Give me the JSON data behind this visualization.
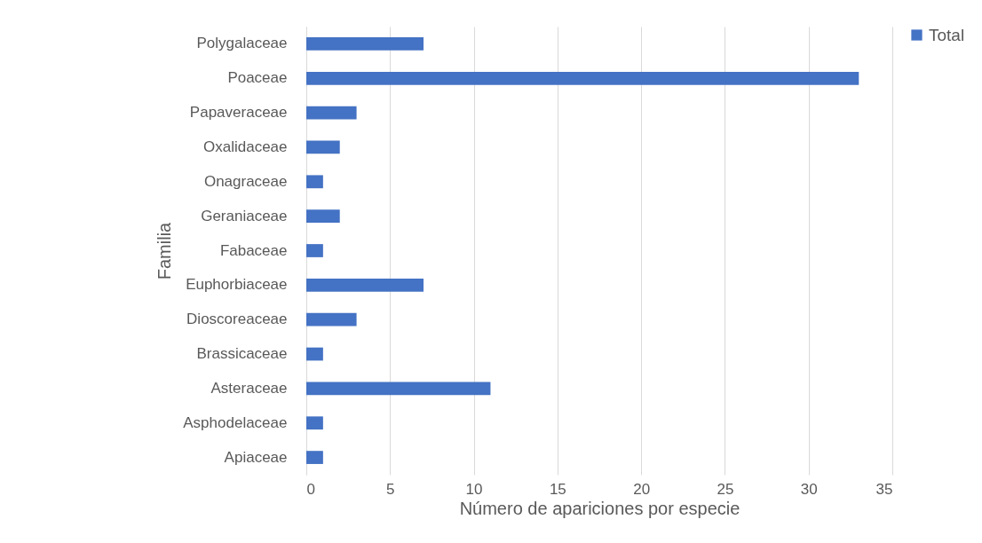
{
  "chart_data": {
    "type": "bar",
    "orientation": "horizontal",
    "xlabel": "Número de apariciones por especie",
    "ylabel": "Familia",
    "categories": [
      "Polygalaceae",
      "Poaceae",
      "Papaveraceae",
      "Oxalidaceae",
      "Onagraceae",
      "Geraniaceae",
      "Fabaceae",
      "Euphorbiaceae",
      "Dioscoreaceae",
      "Brassicaceae",
      "Asteraceae",
      "Asphodelaceae",
      "Apiaceae"
    ],
    "series": [
      {
        "name": "Total",
        "color": "#4472c4",
        "values": [
          7,
          33,
          3,
          2,
          1,
          2,
          1,
          7,
          3,
          1,
          11,
          1,
          1
        ]
      }
    ],
    "xlim": [
      0,
      35
    ],
    "xticks": [
      0,
      5,
      10,
      15,
      20,
      25,
      30,
      35
    ],
    "grid": "x",
    "legend": "right"
  }
}
